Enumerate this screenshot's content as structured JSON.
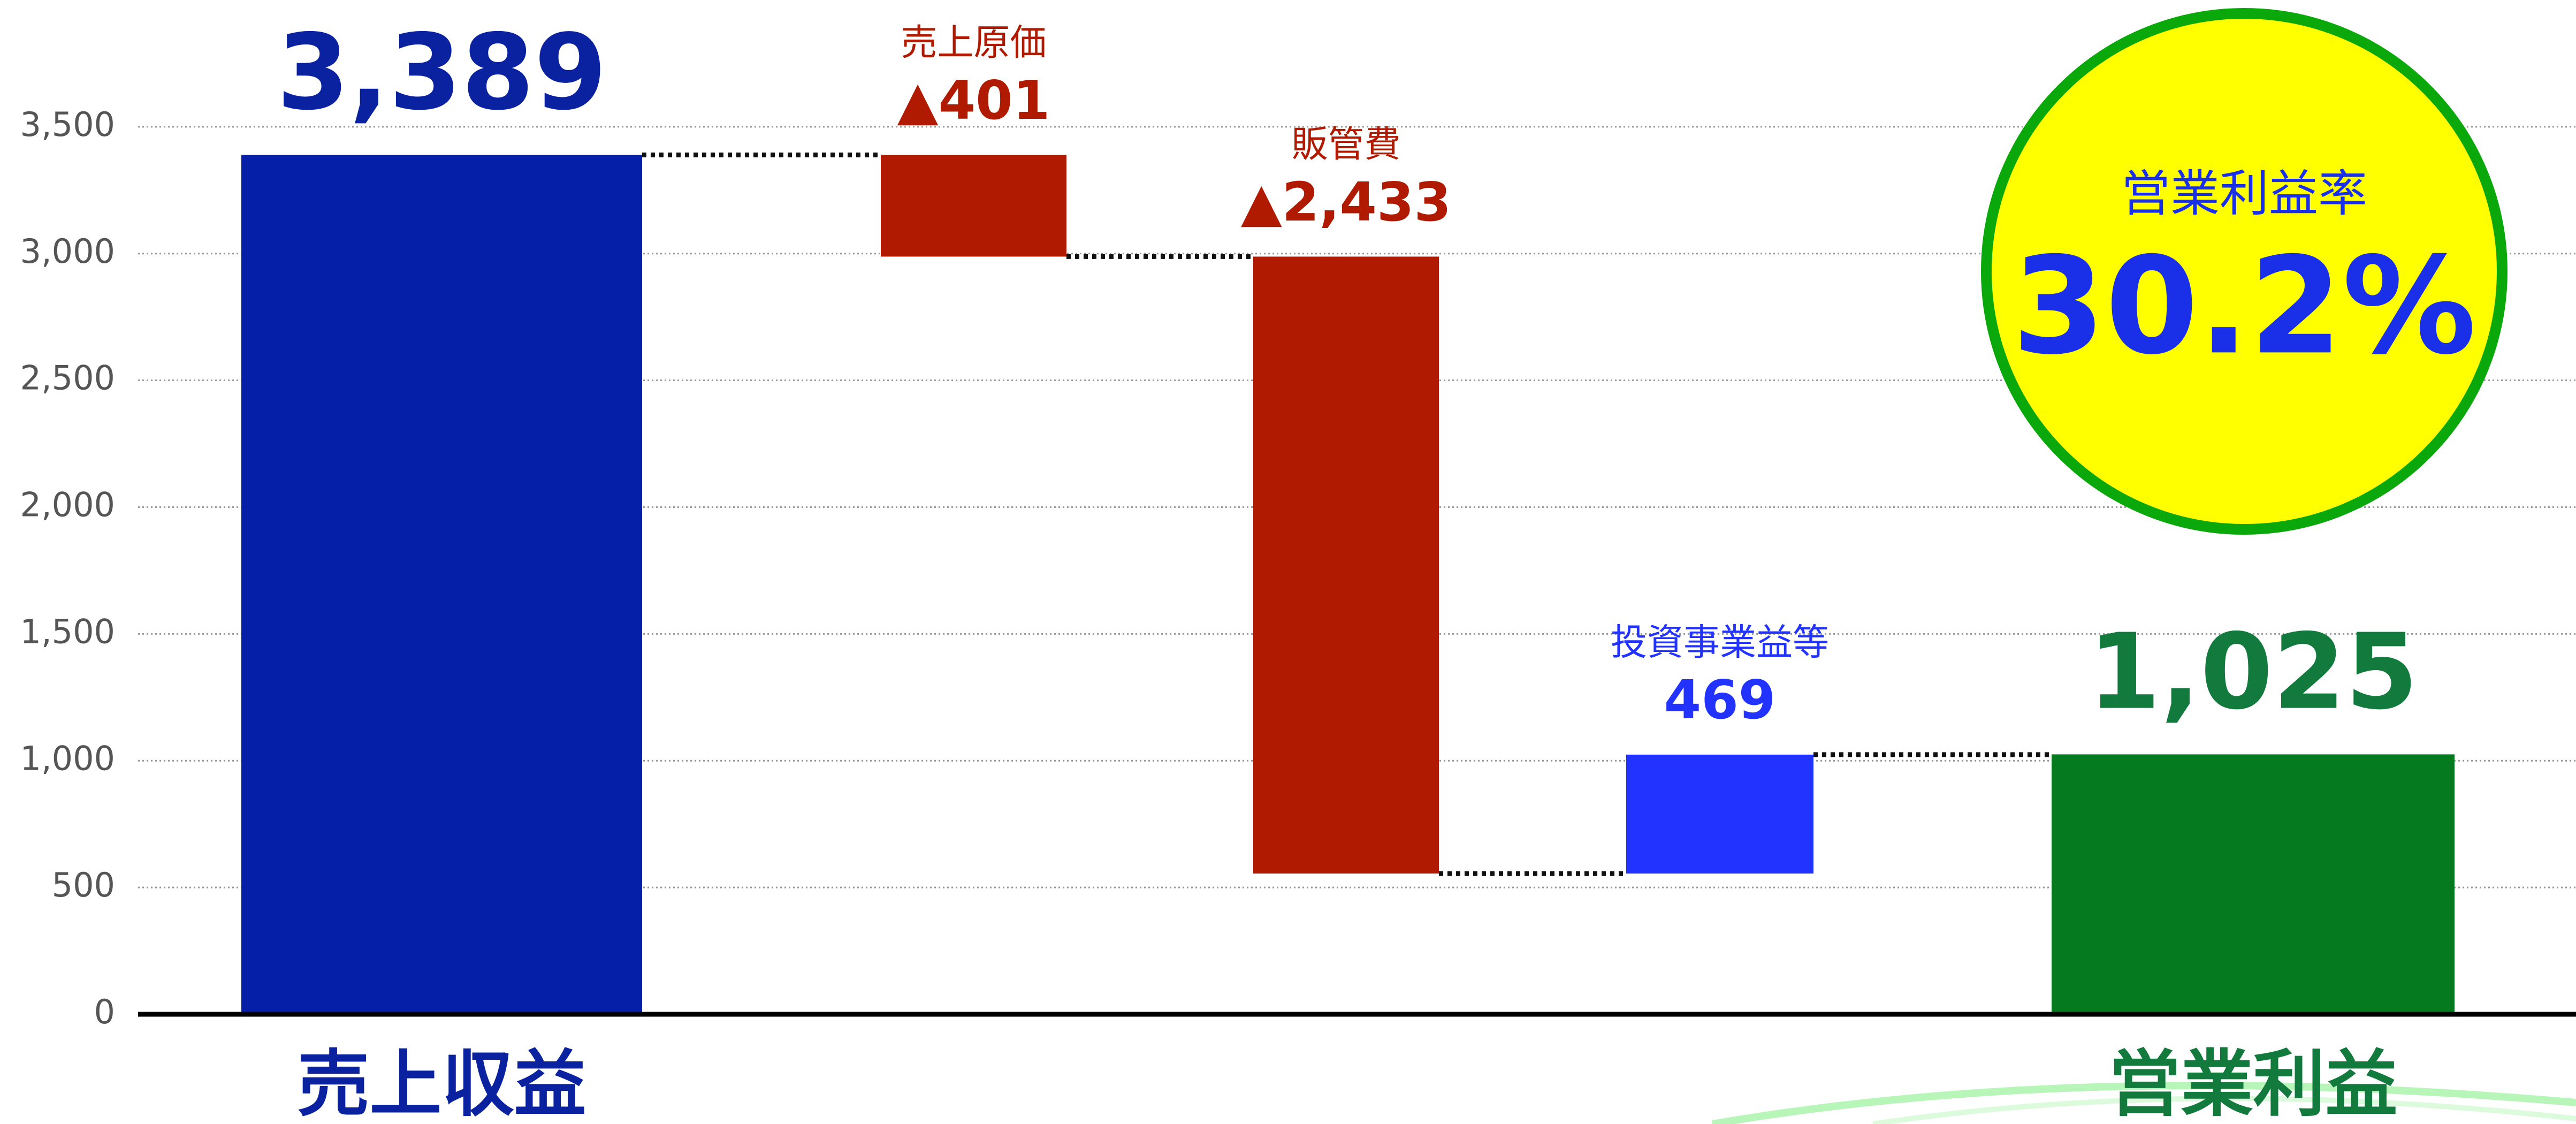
{
  "chart_data": {
    "type": "waterfall",
    "categories": [
      "売上収益",
      "売上原価",
      "販管費",
      "投資事業益等",
      "営業利益"
    ],
    "values": [
      3389,
      -401,
      -2433,
      469,
      1025
    ],
    "value_labels": [
      "3,389",
      "▲401",
      "▲2,433",
      "469",
      "1,025"
    ],
    "colors": [
      "#061fa8",
      "#b01a00",
      "#b01a00",
      "#2233ff",
      "#057a1e"
    ],
    "label_colors": [
      "#0a22a0",
      "#b01a00",
      "#b01a00",
      "#2233ff",
      "#127a3d"
    ],
    "ylim": [
      0,
      4000
    ],
    "yticks": [
      0,
      500,
      {
        "value": 1000,
        "label": "1,000"
      },
      {
        "value": 1500,
        "label": "1,500"
      },
      {
        "value": 2000,
        "label": "2,000"
      },
      {
        "value": 2500,
        "label": "2,500"
      },
      {
        "value": 3000,
        "label": "3,000"
      },
      {
        "value": 3500,
        "label": "3,500"
      }
    ],
    "grid": true,
    "annotation_title": "営業利益率",
    "annotation_value": "30.2%"
  }
}
